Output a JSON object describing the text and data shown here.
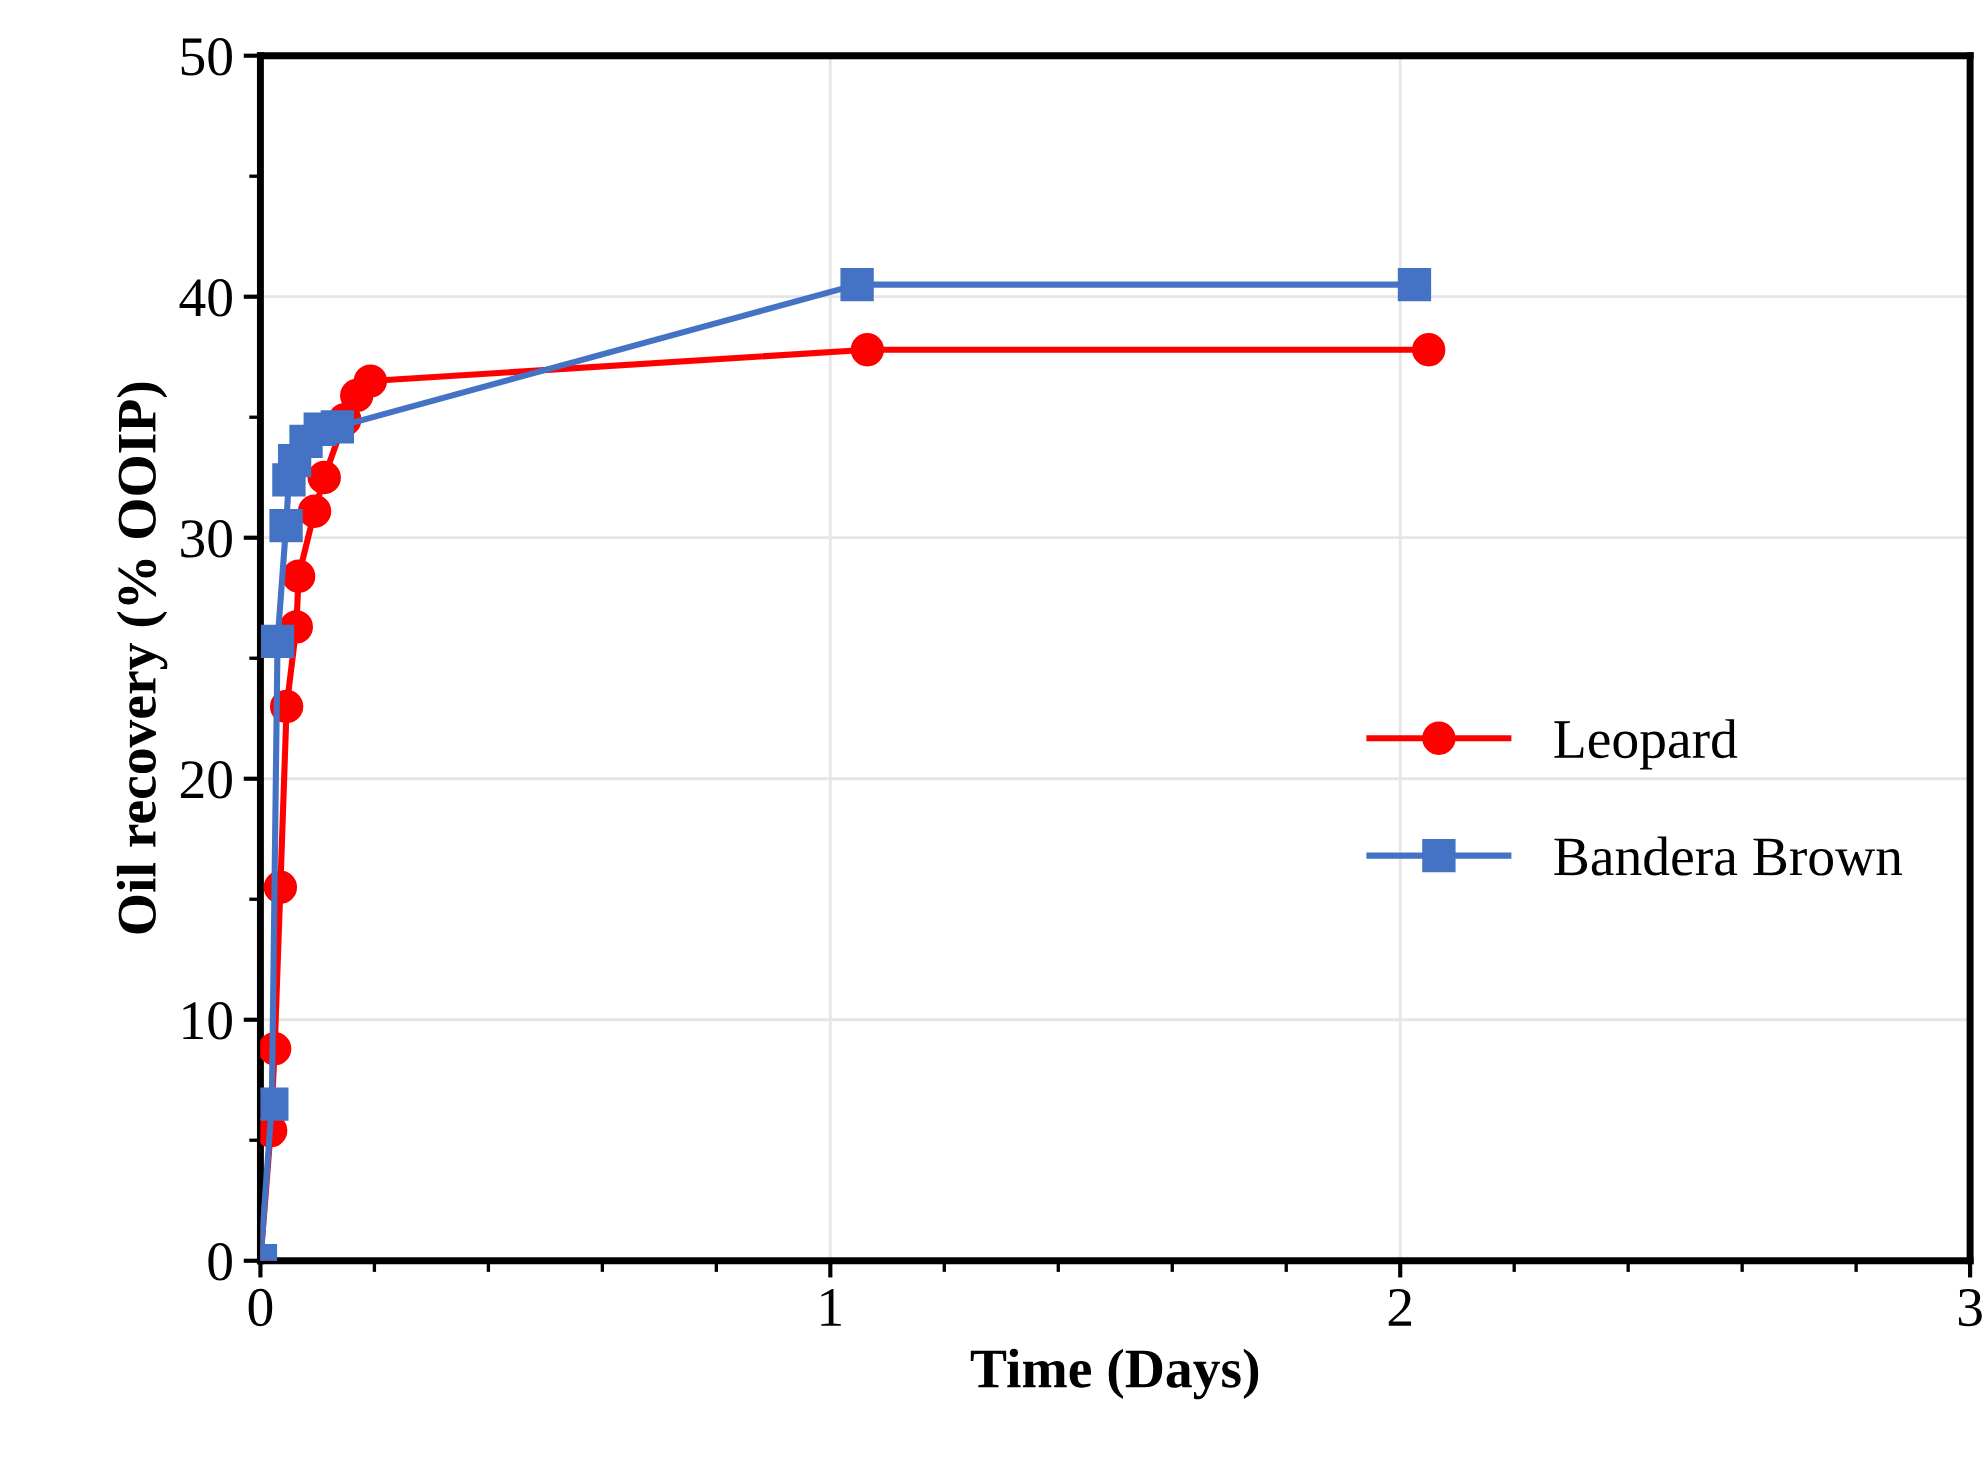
{
  "chart_data": {
    "type": "line",
    "xlabel": "Time (Days)",
    "ylabel": "Oil recovery (% OOIP)",
    "xlim": [
      0,
      3
    ],
    "xticks": [
      0,
      1,
      2,
      3
    ],
    "ylim": [
      0,
      50
    ],
    "yticks": [
      0,
      10,
      20,
      30,
      40,
      50
    ],
    "grid": true,
    "legend": "right",
    "series": [
      {
        "name": "Leopard",
        "color": "#ff0000",
        "marker": "circle",
        "x": [
          0,
          0.018,
          0.025,
          0.035,
          0.046,
          0.063,
          0.067,
          0.095,
          0.112,
          0.148,
          0.169,
          0.193,
          1.065,
          2.05
        ],
        "values": [
          0,
          5.4,
          8.8,
          15.5,
          23.0,
          26.3,
          28.4,
          31.1,
          32.5,
          34.9,
          35.9,
          36.5,
          37.8,
          37.8
        ]
      },
      {
        "name": "Bandera Brown",
        "color": "#4472c4",
        "marker": "square",
        "x": [
          0,
          0.02,
          0.03,
          0.045,
          0.05,
          0.06,
          0.08,
          0.105,
          0.135,
          1.047,
          2.025
        ],
        "values": [
          0,
          6.5,
          25.7,
          30.5,
          32.4,
          33.2,
          34.0,
          34.5,
          34.6,
          40.5,
          40.5
        ]
      }
    ]
  }
}
